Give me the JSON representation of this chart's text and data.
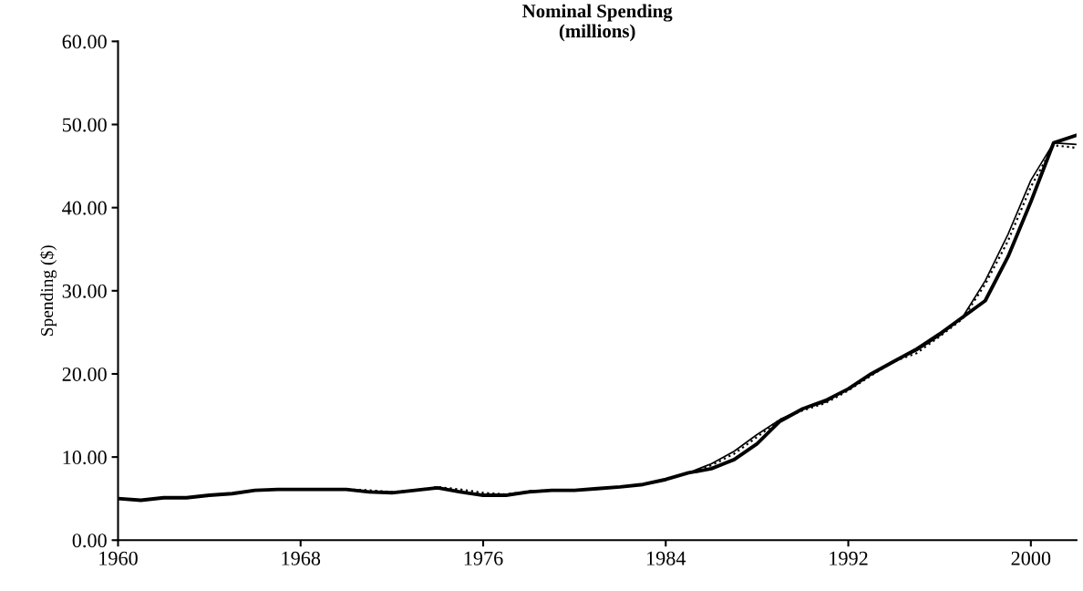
{
  "chart_data": {
    "type": "line",
    "title": "Nominal Spending\n(millions)",
    "ylabel": "Spending ($)",
    "x": [
      1960,
      1961,
      1962,
      1963,
      1964,
      1965,
      1966,
      1967,
      1968,
      1969,
      1970,
      1971,
      1972,
      1973,
      1974,
      1975,
      1976,
      1977,
      1978,
      1979,
      1980,
      1981,
      1982,
      1983,
      1984,
      1985,
      1986,
      1987,
      1988,
      1989,
      1990,
      1991,
      1992,
      1993,
      1994,
      1995,
      1996,
      1997,
      1998,
      1999,
      2000,
      2001,
      2002
    ],
    "series": [
      {
        "color": "#000000",
        "line_style": "dotted",
        "values": [
          5.0,
          4.8,
          5.1,
          5.1,
          5.4,
          5.6,
          6.0,
          6.1,
          6.1,
          6.1,
          6.1,
          6.0,
          5.8,
          6.0,
          6.4,
          6.1,
          5.7,
          5.5,
          5.9,
          6.0,
          6.0,
          6.2,
          6.4,
          6.7,
          7.3,
          8.1,
          9.0,
          10.4,
          12.4,
          14.5,
          15.6,
          16.5,
          18.0,
          19.8,
          21.5,
          22.5,
          24.5,
          26.6,
          30.8,
          36.0,
          42.5,
          47.5,
          47.2
        ]
      },
      {
        "color": "#000000",
        "line_style": "solid",
        "values": [
          5.0,
          4.8,
          5.1,
          5.1,
          5.4,
          5.6,
          6.0,
          6.1,
          6.1,
          6.1,
          6.1,
          5.8,
          5.7,
          6.0,
          6.3,
          5.8,
          5.5,
          5.5,
          5.9,
          6.0,
          6.0,
          6.2,
          6.4,
          6.7,
          7.3,
          8.1,
          9.2,
          10.7,
          12.7,
          14.5,
          15.8,
          16.6,
          18.2,
          20.0,
          21.5,
          22.8,
          24.6,
          26.8,
          31.2,
          36.8,
          43.3,
          47.8,
          47.6
        ]
      },
      {
        "color": "#000000",
        "line_style": "solid",
        "values": [
          5.0,
          4.8,
          5.1,
          5.1,
          5.4,
          5.6,
          6.0,
          6.1,
          6.1,
          6.1,
          6.1,
          5.8,
          5.7,
          6.0,
          6.3,
          5.8,
          5.4,
          5.4,
          5.8,
          6.0,
          6.0,
          6.2,
          6.4,
          6.7,
          7.3,
          8.1,
          8.6,
          9.7,
          11.6,
          14.3,
          15.8,
          16.8,
          18.2,
          20.0,
          21.5,
          23.0,
          24.8,
          26.8,
          28.8,
          34.1,
          40.7,
          47.8,
          48.7
        ]
      }
    ],
    "xlim": [
      1960,
      2002
    ],
    "xticks": [
      1960,
      1968,
      1976,
      1984,
      1992,
      2000
    ],
    "ylim": [
      0,
      60
    ],
    "yticks": [
      {
        "value": 0,
        "label": "0.00"
      },
      {
        "value": 10,
        "label": "10.00"
      },
      {
        "value": 20,
        "label": "20.00"
      },
      {
        "value": 30,
        "label": "30.00"
      },
      {
        "value": 40,
        "label": "40.00"
      },
      {
        "value": 50,
        "label": "50.00"
      },
      {
        "value": 60,
        "label": "60.00"
      }
    ],
    "grid": false,
    "legend": false
  }
}
